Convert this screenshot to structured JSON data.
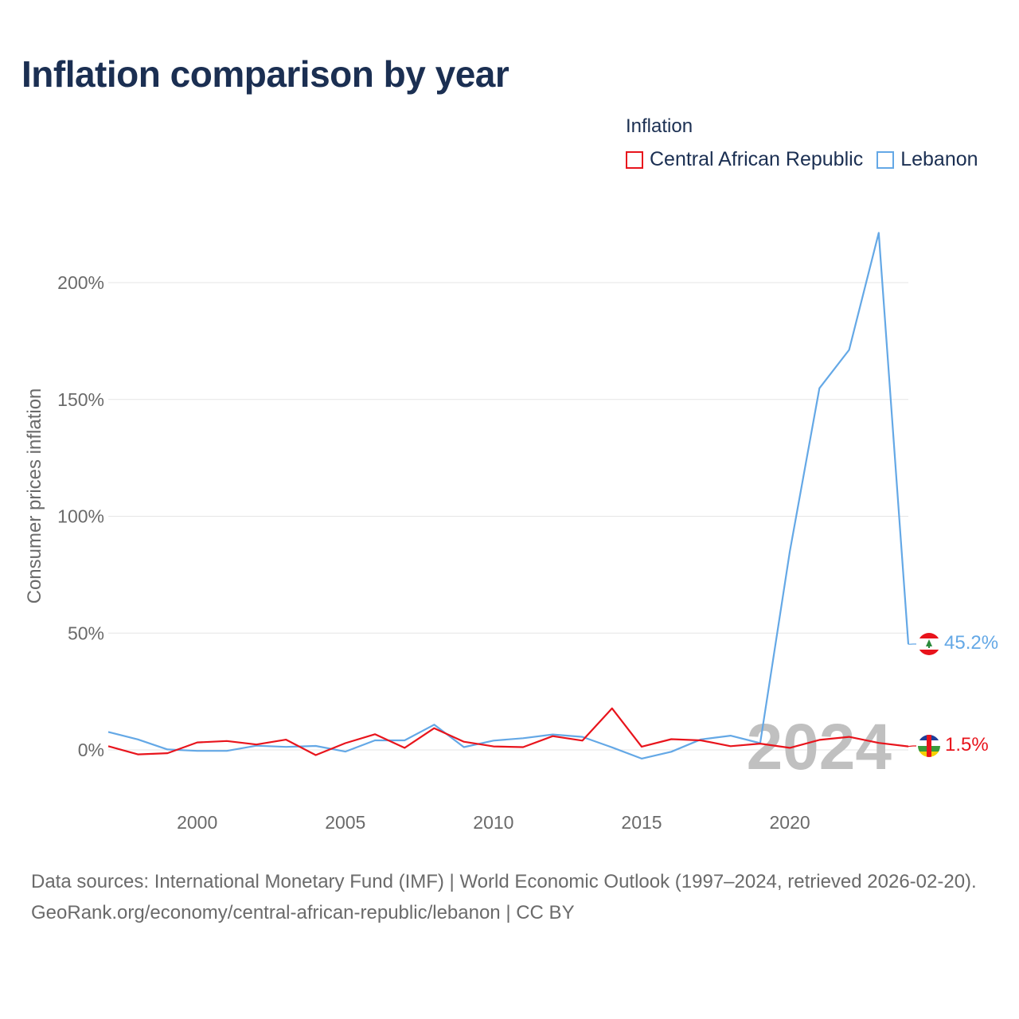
{
  "title": "Inflation comparison by year",
  "legend": {
    "title": "Inflation",
    "items": [
      {
        "label": "Central African Republic",
        "color": "#e8141c"
      },
      {
        "label": "Lebanon",
        "color": "#64a8e6"
      }
    ]
  },
  "watermark_year": "2024",
  "end_labels": {
    "lebanon": "45.2%",
    "car": "1.5%"
  },
  "footer": {
    "sources": "Data sources: International Monetary Fund (IMF) | World Economic Outlook (1997–2024, retrieved 2026-02-20).",
    "credit": "GeoRank.org/economy/central-african-republic/lebanon | CC BY"
  },
  "chart_data": {
    "type": "line",
    "title": "Inflation comparison by year",
    "xlabel": "",
    "ylabel": "Consumer prices inflation",
    "xlim": [
      1997,
      2024
    ],
    "ylim": [
      -25,
      225
    ],
    "y_ticks": [
      0,
      50,
      100,
      150,
      200
    ],
    "y_tick_labels": [
      "0%",
      "50%",
      "100%",
      "150%",
      "200%"
    ],
    "x_ticks": [
      2000,
      2005,
      2010,
      2015,
      2020
    ],
    "x_tick_labels": [
      "2000",
      "2005",
      "2010",
      "2015",
      "2020"
    ],
    "grid": true,
    "x": [
      1997,
      1998,
      1999,
      2000,
      2001,
      2002,
      2003,
      2004,
      2005,
      2006,
      2007,
      2008,
      2009,
      2010,
      2011,
      2012,
      2013,
      2014,
      2015,
      2016,
      2017,
      2018,
      2019,
      2020,
      2021,
      2022,
      2023,
      2024
    ],
    "series": [
      {
        "name": "Central African Republic",
        "color": "#e8141c",
        "values": [
          1.6,
          -1.9,
          -1.4,
          3.2,
          3.8,
          2.3,
          4.4,
          -2.2,
          2.9,
          6.7,
          0.9,
          9.3,
          3.5,
          1.5,
          1.2,
          5.9,
          4.0,
          17.8,
          1.4,
          4.6,
          4.1,
          1.6,
          2.7,
          0.9,
          4.3,
          5.6,
          3.0,
          1.5
        ]
      },
      {
        "name": "Lebanon",
        "color": "#64a8e6",
        "values": [
          7.7,
          4.5,
          0.2,
          -0.4,
          -0.4,
          1.8,
          1.3,
          1.7,
          -0.7,
          4.1,
          4.1,
          10.8,
          1.2,
          4.0,
          5.0,
          6.6,
          5.6,
          1.1,
          -3.7,
          -0.8,
          4.5,
          6.1,
          2.9,
          84.9,
          154.8,
          171.2,
          221.3,
          45.2
        ]
      }
    ]
  }
}
